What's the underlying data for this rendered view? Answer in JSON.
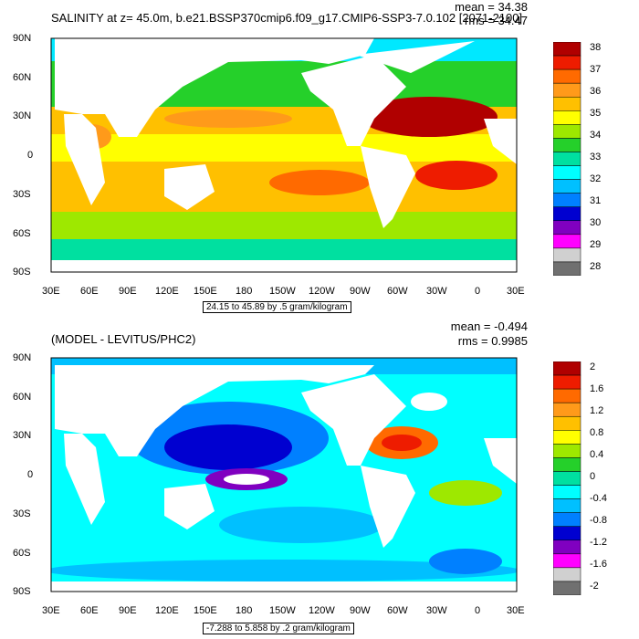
{
  "chart_data": [
    {
      "type": "heatmap",
      "title": "SALINITY at z=  45.0m, b.e21.BSSP370cmip6.f09_g17.CMIP6-SSP3-7.0.102 [2071-2100]",
      "stats": {
        "mean": "mean = 34.38",
        "rms": "rms = 34.47"
      },
      "y_ticks": [
        "90N",
        "60N",
        "30N",
        "0",
        "30S",
        "60S",
        "90S"
      ],
      "x_ticks": [
        "30E",
        "60E",
        "90E",
        "120E",
        "150E",
        "180",
        "150W",
        "120W",
        "90W",
        "60W",
        "30W",
        "0",
        "30E"
      ],
      "footnote": "24.15 to 45.89 by .5 gram/kilogram",
      "colorbar": {
        "labels": [
          "38",
          "37",
          "36",
          "35",
          "34",
          "33",
          "32",
          "31",
          "30",
          "29",
          "28"
        ],
        "colors": [
          "#b00000",
          "#ee1c00",
          "#ff6a00",
          "#ff9a1a",
          "#ffc000",
          "#ffff00",
          "#9ee800",
          "#25d02a",
          "#00e0a0",
          "#00ffff",
          "#00c0ff",
          "#0080ff",
          "#0000d0",
          "#8000c0",
          "#ff00ff",
          "#d0d0d0",
          "#707070"
        ]
      },
      "xlim": [
        30,
        390
      ],
      "ylim": [
        -90,
        90
      ]
    },
    {
      "type": "heatmap",
      "title": "(MODEL - LEVITUS/PHC2)",
      "stats": {
        "mean": "mean = -0.494",
        "rms": "rms = 0.9985"
      },
      "y_ticks": [
        "90N",
        "60N",
        "30N",
        "0",
        "30S",
        "60S",
        "90S"
      ],
      "x_ticks": [
        "30E",
        "60E",
        "90E",
        "120E",
        "150E",
        "180",
        "150W",
        "120W",
        "90W",
        "60W",
        "30W",
        "0",
        "30E"
      ],
      "footnote": "-7.288 to 5.858 by .2 gram/kilogram",
      "colorbar": {
        "labels": [
          "2",
          "1.6",
          "1.2",
          "0.8",
          "0.4",
          "0",
          "-0.4",
          "-0.8",
          "-1.2",
          "-1.6",
          "-2"
        ],
        "colors": [
          "#b00000",
          "#ee1c00",
          "#ff6a00",
          "#ff9a1a",
          "#ffc000",
          "#ffff00",
          "#9ee800",
          "#25d02a",
          "#00e0a0",
          "#00ffff",
          "#00c0ff",
          "#0080ff",
          "#0000d0",
          "#8000c0",
          "#ff00ff",
          "#d0d0d0",
          "#707070"
        ]
      },
      "xlim": [
        30,
        390
      ],
      "ylim": [
        -90,
        90
      ]
    }
  ]
}
